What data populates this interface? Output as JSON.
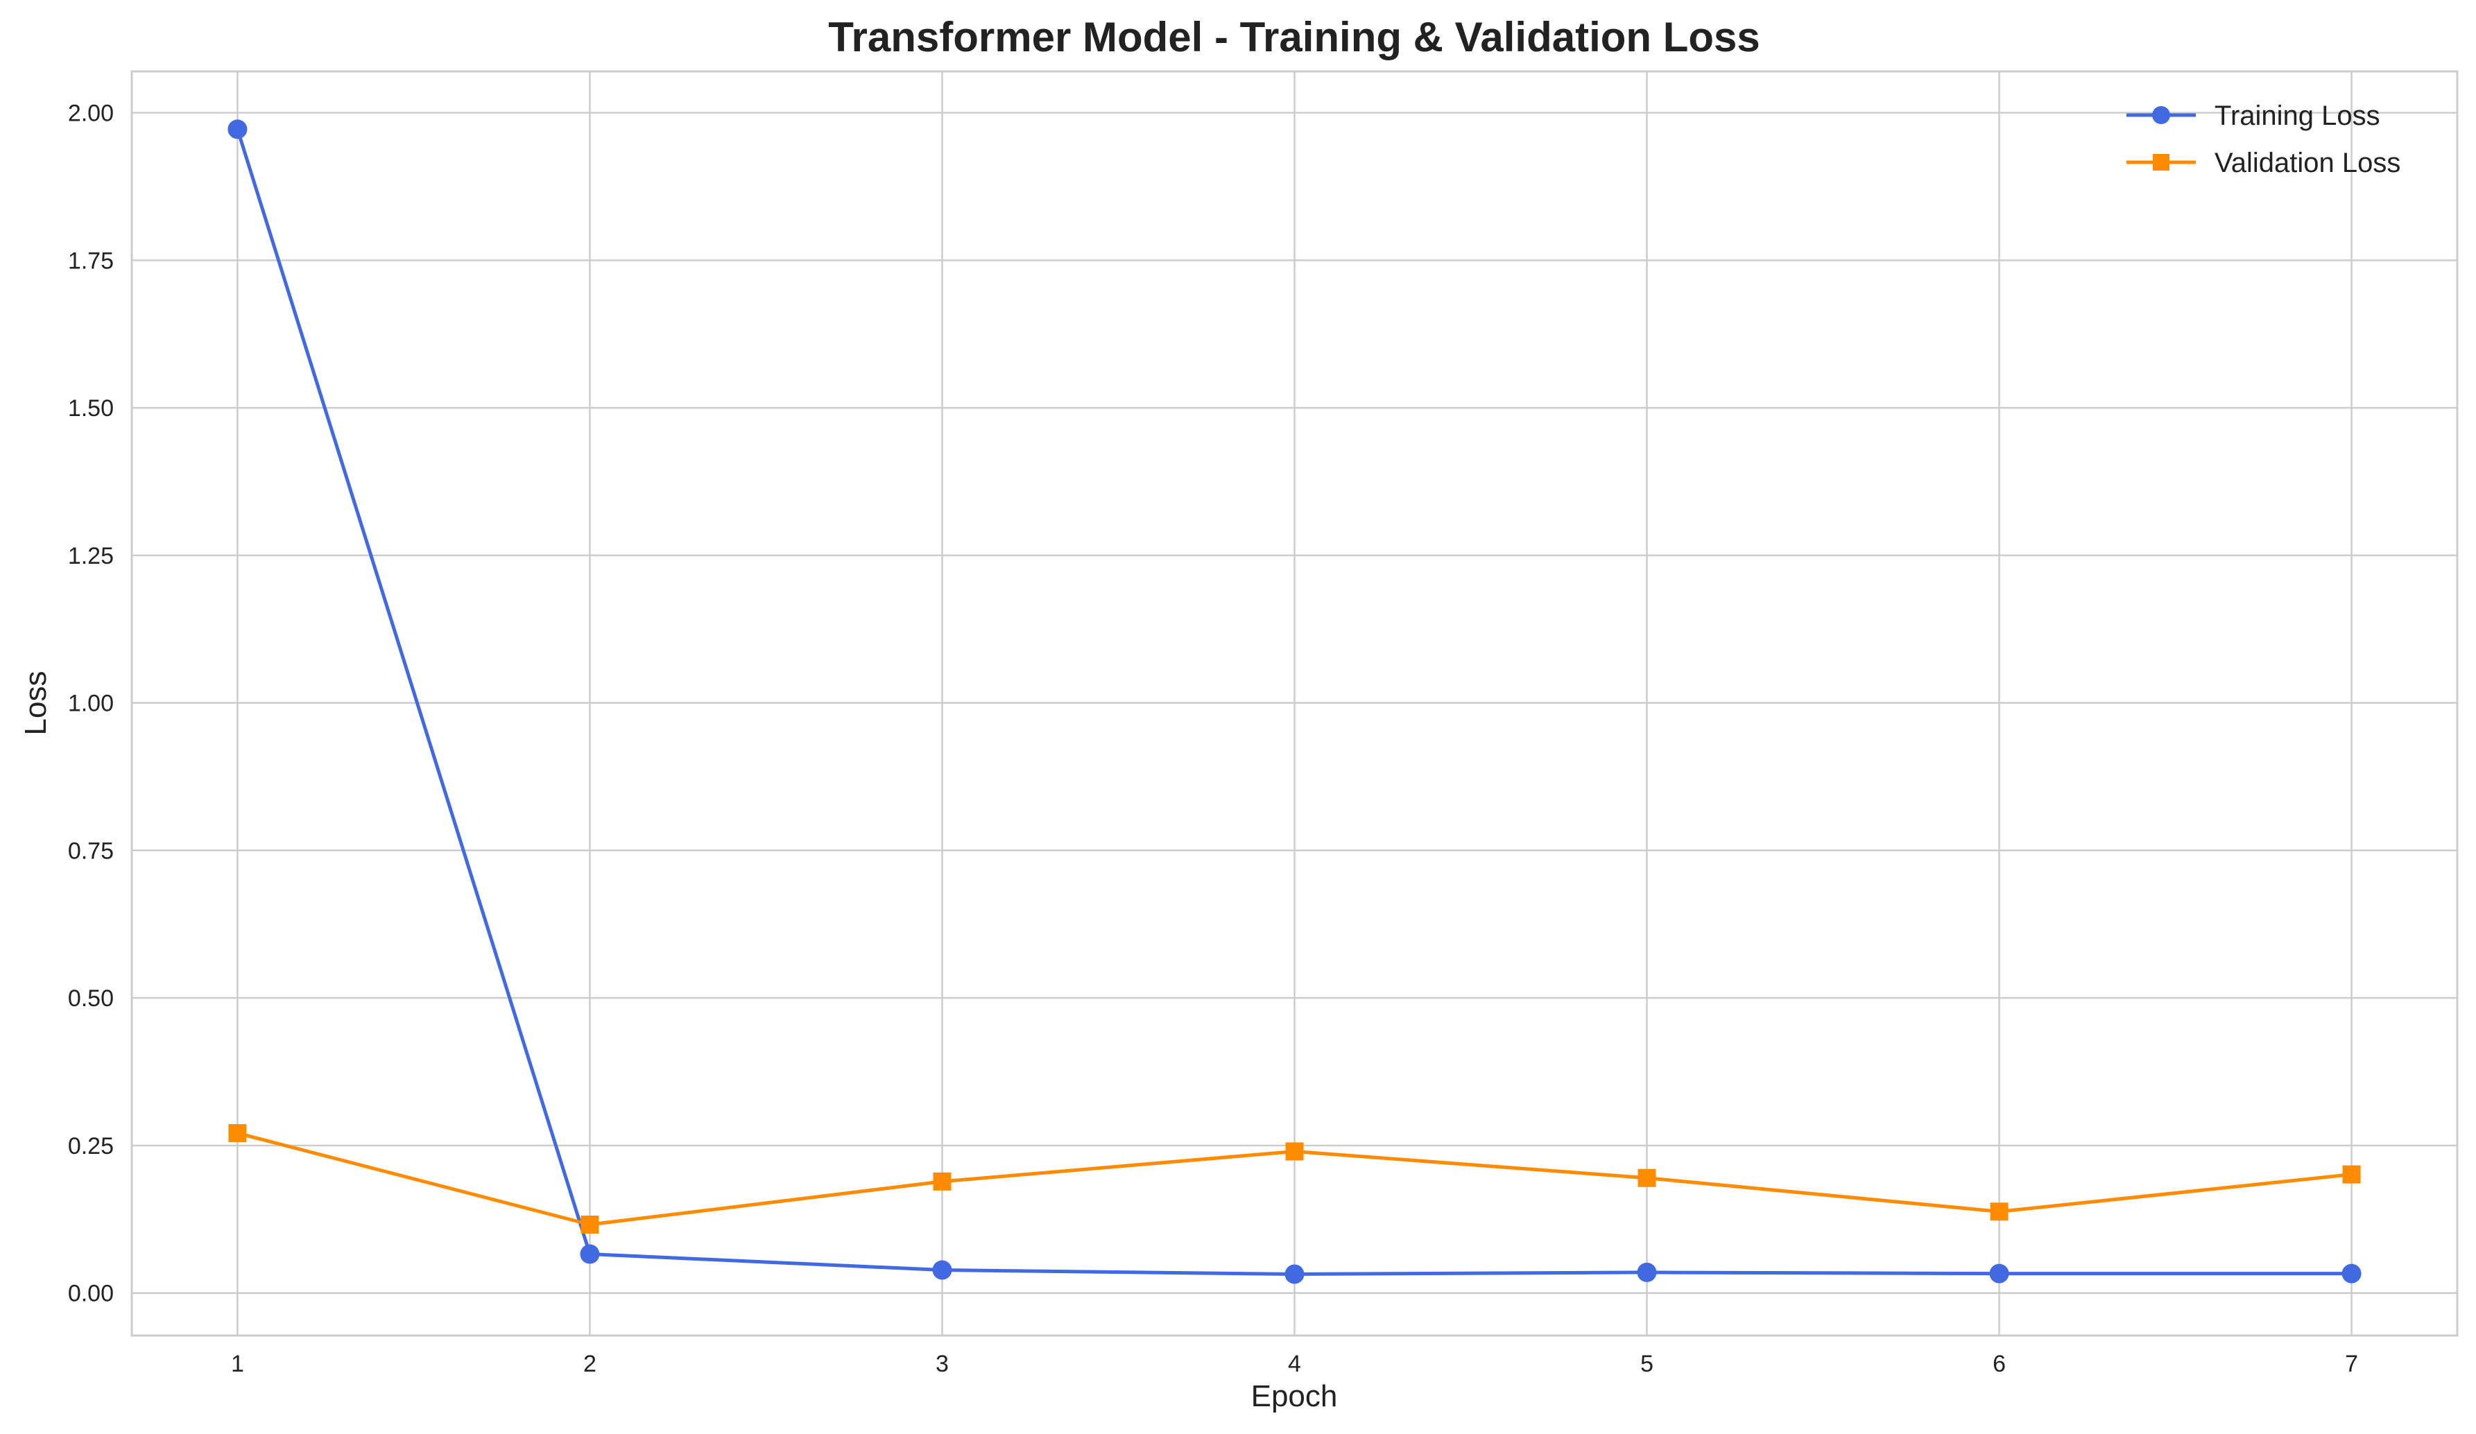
{
  "chart_data": {
    "type": "line",
    "title": "Transformer Model - Training & Validation Loss",
    "xlabel": "Epoch",
    "ylabel": "Loss",
    "x": [
      1,
      2,
      3,
      4,
      5,
      6,
      7
    ],
    "x_tick_labels": [
      "1",
      "2",
      "3",
      "4",
      "5",
      "6",
      "7"
    ],
    "y_ticks": [
      0.0,
      0.25,
      0.5,
      0.75,
      1.0,
      1.25,
      1.5,
      1.75,
      2.0
    ],
    "y_tick_labels": [
      "0.00",
      "0.25",
      "0.50",
      "0.75",
      "1.00",
      "1.25",
      "1.50",
      "1.75",
      "2.00"
    ],
    "xlim": [
      0.7,
      7.3
    ],
    "ylim": [
      -0.072,
      2.07
    ],
    "grid": true,
    "legend_position": "top-right",
    "series": [
      {
        "name": "Training Loss",
        "color": "#4169E1",
        "marker": "circle",
        "values": [
          1.972,
          0.066,
          0.039,
          0.032,
          0.035,
          0.033,
          0.033
        ]
      },
      {
        "name": "Validation Loss",
        "color": "#FF8C00",
        "marker": "square",
        "values": [
          0.271,
          0.116,
          0.189,
          0.24,
          0.195,
          0.138,
          0.201
        ]
      }
    ]
  }
}
